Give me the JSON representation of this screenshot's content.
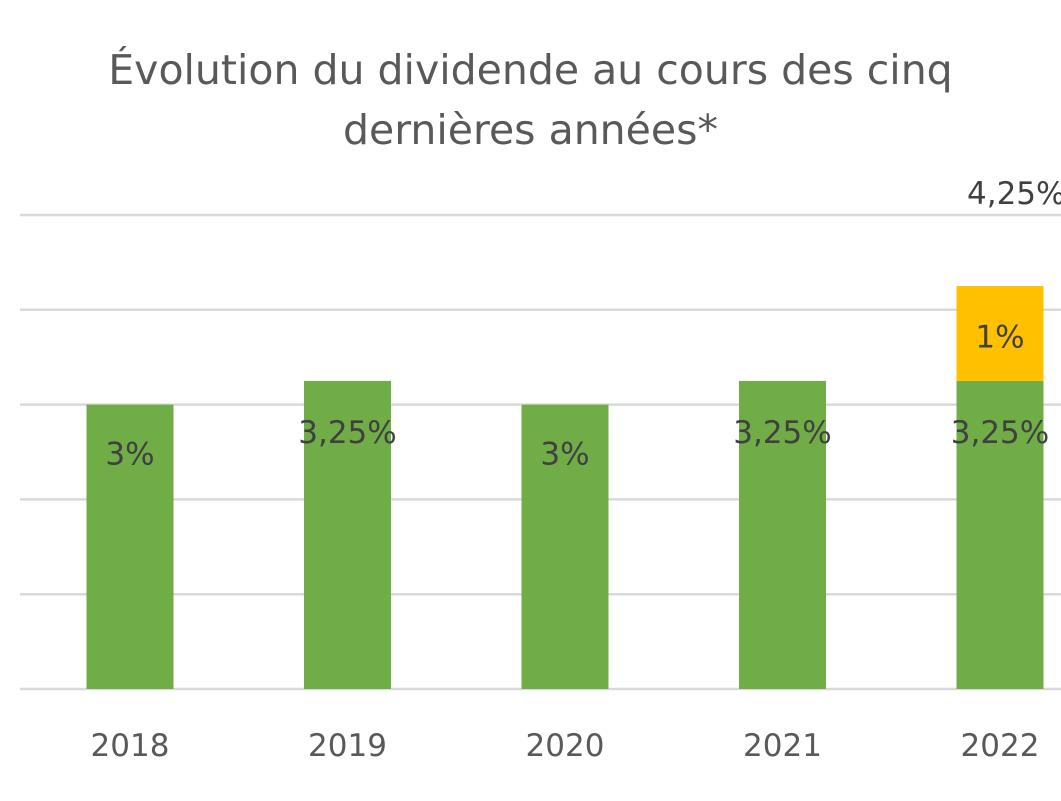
{
  "chart_data": {
    "type": "bar",
    "stacked": true,
    "title_lines": [
      "Évolution du dividende au cours des cinq",
      "dernières années*"
    ],
    "categories": [
      "2018",
      "2019",
      "2020",
      "2021",
      "2022"
    ],
    "series": [
      {
        "values": [
          3,
          3.25,
          3,
          3.25,
          3.25
        ],
        "labels": [
          "3%",
          "3,25%",
          "3%",
          "3,25%",
          "3,25%"
        ],
        "color": "#70ad47"
      },
      {
        "values": [
          0,
          0,
          0,
          0,
          1
        ],
        "labels": [
          "",
          "",
          "",
          "",
          "1%"
        ],
        "color": "#ffc000"
      }
    ],
    "totals": [
      "",
      "",
      "",
      "",
      "4,25%"
    ],
    "ylim": [
      0,
      5
    ],
    "gridlines": [
      0,
      1,
      2,
      3,
      4,
      5
    ],
    "grid": true,
    "legend": "none"
  }
}
